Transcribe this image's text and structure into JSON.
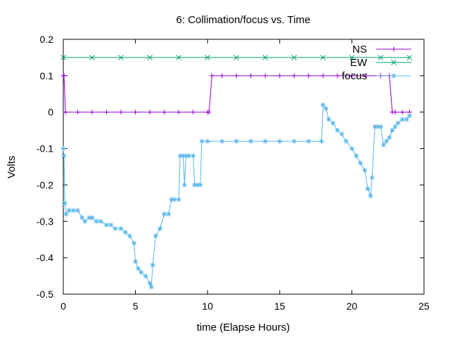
{
  "chart_data": {
    "type": "line",
    "title": "6: Collimation/focus vs. Time",
    "xlabel": "time (Elapse Hours)",
    "ylabel": "Volts",
    "xlim": [
      0,
      25
    ],
    "ylim": [
      -0.5,
      0.2
    ],
    "x_ticks": [
      0,
      5,
      10,
      15,
      20,
      25
    ],
    "y_ticks": [
      -0.5,
      -0.4,
      -0.3,
      -0.2,
      -0.1,
      0,
      0.1,
      0.2
    ],
    "x_tick_labels": [
      "0",
      "5",
      "10",
      "15",
      "20",
      "25"
    ],
    "y_tick_labels": [
      "-0.5",
      "-0.4",
      "-0.3",
      "-0.2",
      "-0.1",
      "0",
      "0.1",
      "0.2"
    ],
    "legend_position": "top-right",
    "grid": false,
    "series": [
      {
        "name": "NS",
        "color": "#9400d3",
        "marker": "plus",
        "x": [
          0,
          0.05,
          0.15,
          1,
          2,
          3,
          4,
          5,
          6,
          7,
          8,
          9,
          10,
          10.1,
          10.3,
          11,
          12,
          13,
          14,
          15,
          16,
          17,
          18,
          19,
          20,
          21,
          22,
          22.6,
          22.8,
          23,
          23.5,
          24
        ],
        "y": [
          0.1,
          0.1,
          0,
          0,
          0,
          0,
          0,
          0,
          0,
          0,
          0,
          0,
          0,
          0,
          0.1,
          0.1,
          0.1,
          0.1,
          0.1,
          0.1,
          0.1,
          0.1,
          0.1,
          0.1,
          0.1,
          0.1,
          0.1,
          0.1,
          0,
          0,
          0,
          0
        ]
      },
      {
        "name": "EW",
        "color": "#009e73",
        "marker": "cross",
        "x": [
          0,
          2,
          4,
          6,
          8,
          10,
          12,
          14,
          16,
          18,
          20,
          22,
          24
        ],
        "y": [
          0.15,
          0.15,
          0.15,
          0.15,
          0.15,
          0.15,
          0.15,
          0.15,
          0.15,
          0.15,
          0.15,
          0.15,
          0.15
        ]
      },
      {
        "name": "focus",
        "color": "#56b4e9",
        "marker": "star",
        "x": [
          0,
          0.05,
          0.1,
          0.2,
          0.4,
          0.7,
          1.0,
          1.3,
          1.5,
          1.8,
          2.0,
          2.3,
          2.6,
          3.0,
          3.3,
          3.6,
          4.0,
          4.3,
          4.6,
          4.9,
          5.0,
          5.2,
          5.4,
          5.7,
          6.0,
          6.1,
          6.2,
          6.4,
          6.7,
          7.0,
          7.3,
          7.5,
          7.7,
          8.0,
          8.1,
          8.3,
          8.4,
          8.5,
          8.7,
          9.0,
          9.1,
          9.3,
          9.5,
          9.6,
          10.0,
          11.0,
          12.0,
          13.0,
          14.0,
          15.0,
          16.0,
          17.0,
          17.9,
          18.0,
          18.2,
          18.4,
          18.7,
          19.0,
          19.3,
          19.6,
          20.0,
          20.3,
          20.6,
          20.9,
          21.1,
          21.3,
          21.4,
          21.6,
          21.8,
          22.0,
          22.2,
          22.4,
          22.6,
          22.8,
          23.0,
          23.2,
          23.5,
          23.8,
          24.0
        ],
        "y": [
          -0.1,
          -0.12,
          -0.25,
          -0.28,
          -0.27,
          -0.27,
          -0.27,
          -0.29,
          -0.3,
          -0.29,
          -0.29,
          -0.3,
          -0.3,
          -0.31,
          -0.31,
          -0.32,
          -0.32,
          -0.33,
          -0.34,
          -0.36,
          -0.41,
          -0.43,
          -0.44,
          -0.45,
          -0.47,
          -0.48,
          -0.42,
          -0.34,
          -0.32,
          -0.28,
          -0.28,
          -0.24,
          -0.24,
          -0.24,
          -0.12,
          -0.12,
          -0.2,
          -0.12,
          -0.12,
          -0.12,
          -0.2,
          -0.2,
          -0.2,
          -0.08,
          -0.08,
          -0.08,
          -0.08,
          -0.08,
          -0.08,
          -0.08,
          -0.08,
          -0.08,
          -0.08,
          0.02,
          0.01,
          -0.02,
          -0.03,
          -0.05,
          -0.06,
          -0.08,
          -0.1,
          -0.12,
          -0.14,
          -0.16,
          -0.21,
          -0.23,
          -0.18,
          -0.04,
          -0.04,
          -0.04,
          -0.09,
          -0.08,
          -0.07,
          -0.05,
          -0.04,
          -0.03,
          -0.02,
          -0.02,
          -0.01
        ]
      }
    ]
  }
}
